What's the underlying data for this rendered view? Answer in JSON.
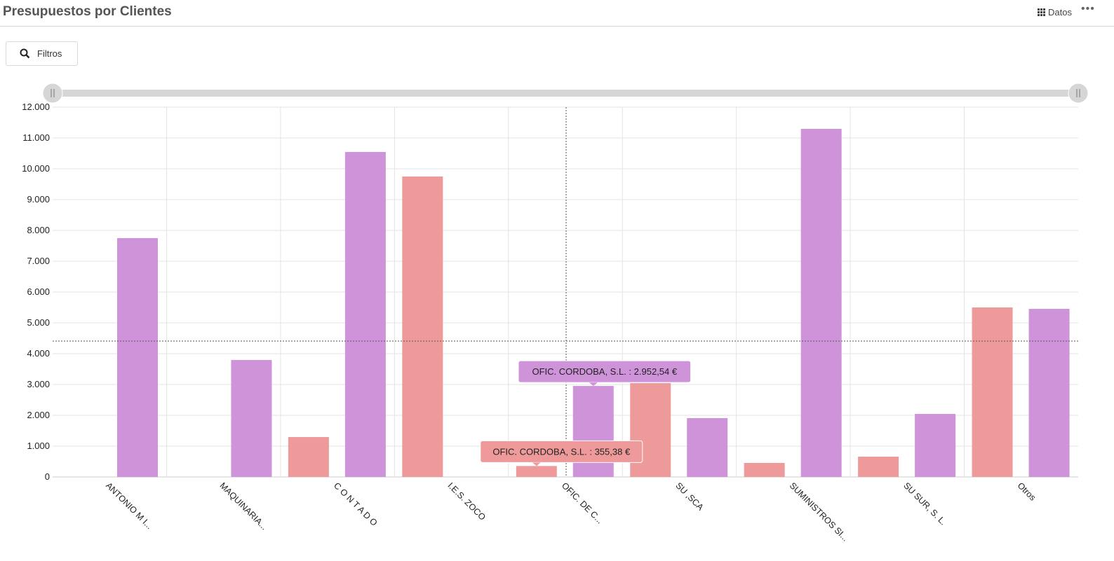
{
  "header": {
    "title": "Presupuestos por Clientes",
    "datos_label": "Datos",
    "more_label": "•••"
  },
  "toolbar": {
    "filtros_label": "Filtros"
  },
  "colors": {
    "series1": "#ee9a9a",
    "series2": "#cf93d9"
  },
  "chart_data": {
    "type": "bar",
    "title": "Presupuestos por Clientes",
    "categories": [
      "ANTONIO M I...",
      "MAQUINARIA...",
      "C O N T A D O",
      "I.E.S. ZOCO",
      "OFIC. DE C...",
      "SU ,SCA",
      "SUMINISTROS SI...",
      "SU SUR, S. L.",
      "Otros"
    ],
    "series": [
      {
        "name": "",
        "color": "#ee9a9a",
        "values": [
          0,
          0,
          1295,
          9750,
          355.38,
          3045,
          455,
          659,
          5500
        ]
      },
      {
        "name": "",
        "color": "#cf93d9",
        "values": [
          7750,
          3795,
          10545,
          0,
          2952.54,
          1909,
          11295,
          2045,
          5455
        ]
      }
    ],
    "ylim": [
      0,
      12000
    ],
    "yticks": [
      "0",
      "1.000",
      "2.000",
      "3.000",
      "4.000",
      "5.000",
      "6.000",
      "7.000",
      "8.000",
      "9.000",
      "10.000",
      "11.000",
      "12.000"
    ],
    "grid": true,
    "crosshair": {
      "category_index": 4,
      "y": 4409
    },
    "tooltips": [
      {
        "text": "OFIC. CORDOBA, S.L. : 2.952,54 €",
        "series": 1,
        "category_index": 4
      },
      {
        "text": "OFIC. CORDOBA, S.L. : 355,38 €",
        "series": 0,
        "category_index": 4
      }
    ],
    "range_slider": {
      "start": 0,
      "end": 1
    }
  }
}
